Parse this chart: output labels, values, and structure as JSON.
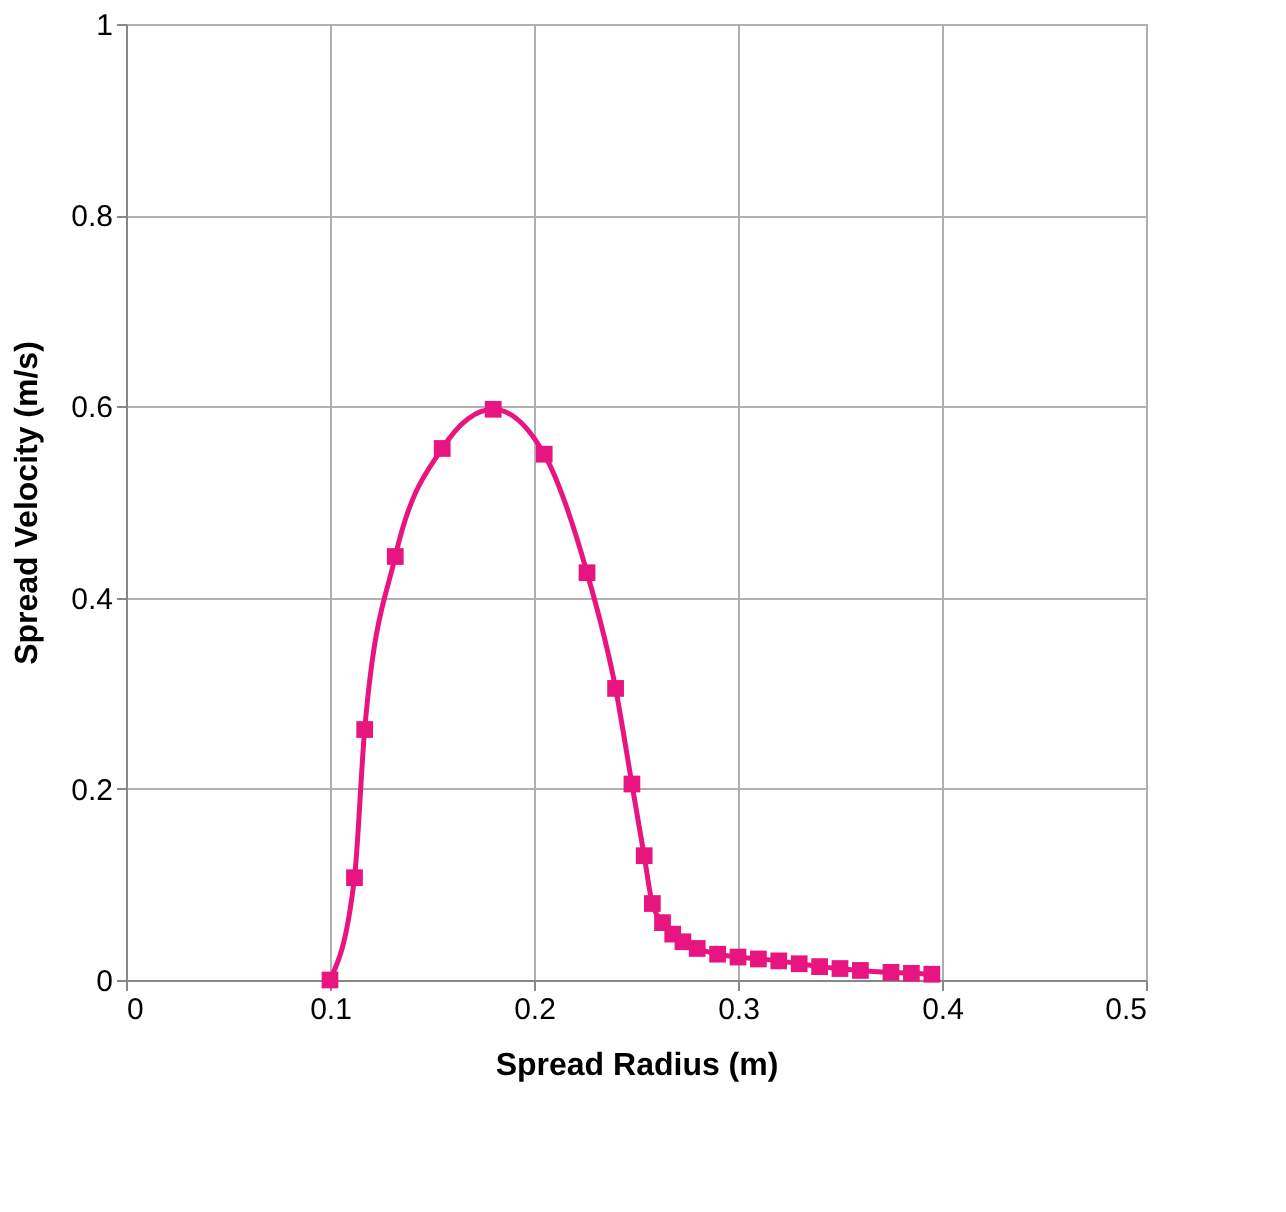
{
  "chart_data": {
    "type": "line",
    "xlabel": "Spread Radius (m)",
    "ylabel": "Spread Velocity (m/s)",
    "xlim": [
      0,
      0.5
    ],
    "xticks": [
      0,
      0.1,
      0.2,
      0.3,
      0.4,
      0.5
    ],
    "ylim": [
      0,
      1
    ],
    "yticks": [
      0,
      0.2,
      0.4,
      0.6,
      0.8,
      1
    ],
    "grid": true,
    "marker": "square",
    "line_style": "solid",
    "series": [
      {
        "color": "#e8147f",
        "x": [
          0.1,
          0.112,
          0.117,
          0.132,
          0.155,
          0.18,
          0.205,
          0.226,
          0.24,
          0.248,
          0.254,
          0.258,
          0.263,
          0.268,
          0.273,
          0.28,
          0.29,
          0.3,
          0.31,
          0.32,
          0.33,
          0.34,
          0.35,
          0.36,
          0.375,
          0.385,
          0.395
        ],
        "values": [
          0,
          0.107,
          0.262,
          0.443,
          0.556,
          0.597,
          0.55,
          0.426,
          0.305,
          0.205,
          0.13,
          0.08,
          0.06,
          0.048,
          0.04,
          0.033,
          0.027,
          0.024,
          0.022,
          0.02,
          0.017,
          0.014,
          0.012,
          0.01,
          0.008,
          0.007,
          0.006
        ]
      }
    ]
  }
}
